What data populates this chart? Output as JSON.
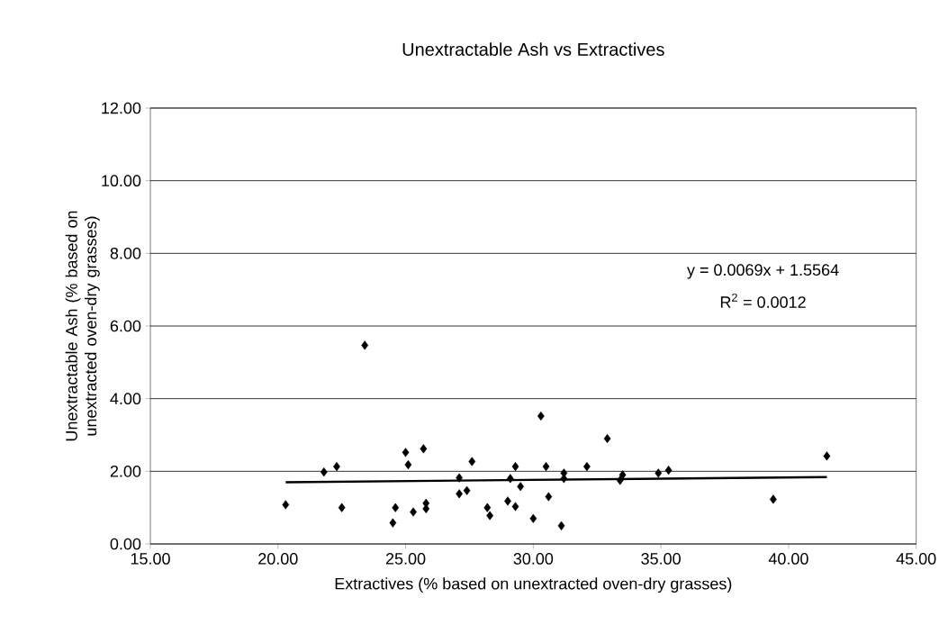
{
  "chart_data": {
    "type": "scatter",
    "title": "Unextractable Ash vs Extractives",
    "xlabel": "Extractives (% based on unextracted oven-dry grasses)",
    "ylabel": "Unextractable Ash (% based on unextracted oven-dry grasses)",
    "annotations": [
      "y = 0.0069x + 1.5564",
      "R$^{2}$ = 0.0012"
    ],
    "xlim": [
      15,
      45
    ],
    "xticks": [
      {
        "value": 15,
        "label": "15.00"
      },
      {
        "value": 20,
        "label": "20.00"
      },
      {
        "value": 25,
        "label": "25.00"
      },
      {
        "value": 30,
        "label": "30.00"
      },
      {
        "value": 35,
        "label": "35.00"
      },
      {
        "value": 40,
        "label": "40.00"
      },
      {
        "value": 45,
        "label": "45.00"
      }
    ],
    "ylim": [
      0,
      12
    ],
    "yticks": [
      {
        "value": 0,
        "label": "0.00"
      },
      {
        "value": 2,
        "label": "2.00"
      },
      {
        "value": 4,
        "label": "4.00"
      },
      {
        "value": 6,
        "label": "6.00"
      },
      {
        "value": 8,
        "label": "8.00"
      },
      {
        "value": 10,
        "label": "10.00"
      },
      {
        "value": 12,
        "label": "12.00"
      }
    ],
    "grid": "y",
    "series": [
      {
        "type": "scatter",
        "marker": "diamond",
        "color": "#000000",
        "x": [
          20.3,
          21.8,
          22.3,
          22.5,
          23.4,
          24.5,
          24.6,
          25.0,
          25.1,
          25.3,
          25.7,
          25.8,
          25.8,
          27.1,
          27.1,
          27.4,
          27.6,
          28.2,
          28.3,
          29.0,
          29.1,
          29.3,
          29.3,
          29.5,
          30.0,
          30.3,
          30.5,
          30.6,
          31.1,
          31.2,
          31.2,
          32.1,
          32.9,
          33.4,
          33.5,
          34.9,
          35.3,
          39.4,
          41.5
        ],
        "values": [
          1.08,
          1.98,
          2.13,
          1.0,
          5.47,
          0.58,
          1.0,
          2.52,
          2.18,
          0.88,
          2.62,
          0.97,
          1.12,
          1.38,
          1.82,
          1.47,
          2.27,
          1.0,
          0.78,
          1.18,
          1.8,
          2.13,
          1.03,
          1.58,
          0.7,
          3.52,
          2.13,
          1.3,
          0.5,
          1.8,
          1.95,
          2.13,
          2.9,
          1.75,
          1.9,
          1.95,
          2.03,
          1.23,
          2.42
        ]
      },
      {
        "type": "line",
        "marker": "none",
        "line_style": "solid",
        "color": "#000000",
        "x": [
          20.3,
          41.5
        ],
        "values": [
          1.7,
          1.84
        ]
      }
    ]
  }
}
